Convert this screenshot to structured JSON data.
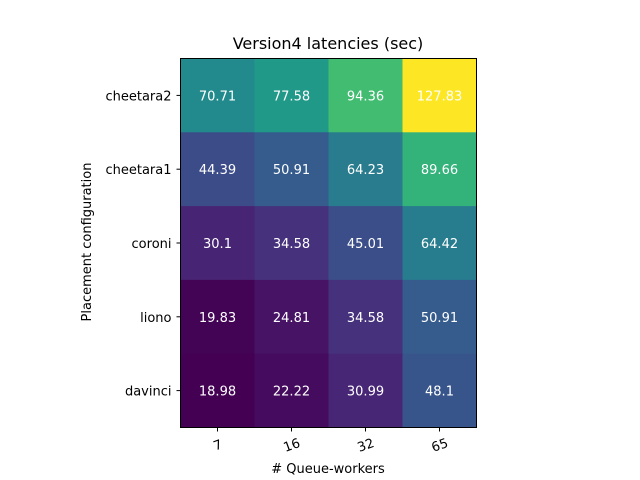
{
  "chart_data": {
    "type": "heatmap",
    "title": "Version4 latencies (sec)",
    "xlabel": "# Queue-workers",
    "ylabel": "Placement configuration",
    "x_categories": [
      "7",
      "16",
      "32",
      "65"
    ],
    "y_categories": [
      "cheetara2",
      "cheetara1",
      "coroni",
      "liono",
      "davinci"
    ],
    "values": [
      [
        70.71,
        77.58,
        94.36,
        127.83
      ],
      [
        44.39,
        50.91,
        64.23,
        89.66
      ],
      [
        30.1,
        34.58,
        45.01,
        64.42
      ],
      [
        19.83,
        24.81,
        34.58,
        50.91
      ],
      [
        18.98,
        22.22,
        30.99,
        48.1
      ]
    ],
    "value_labels": [
      [
        "70.71",
        "77.58",
        "94.36",
        "127.83"
      ],
      [
        "44.39",
        "50.91",
        "64.23",
        "89.66"
      ],
      [
        "30.1",
        "34.58",
        "45.01",
        "64.42"
      ],
      [
        "19.83",
        "24.81",
        "34.58",
        "50.91"
      ],
      [
        "18.98",
        "22.22",
        "30.99",
        "48.1"
      ]
    ],
    "colormap": "viridis",
    "grid": false,
    "legend": "none",
    "annotation_color": "#ffffff"
  }
}
